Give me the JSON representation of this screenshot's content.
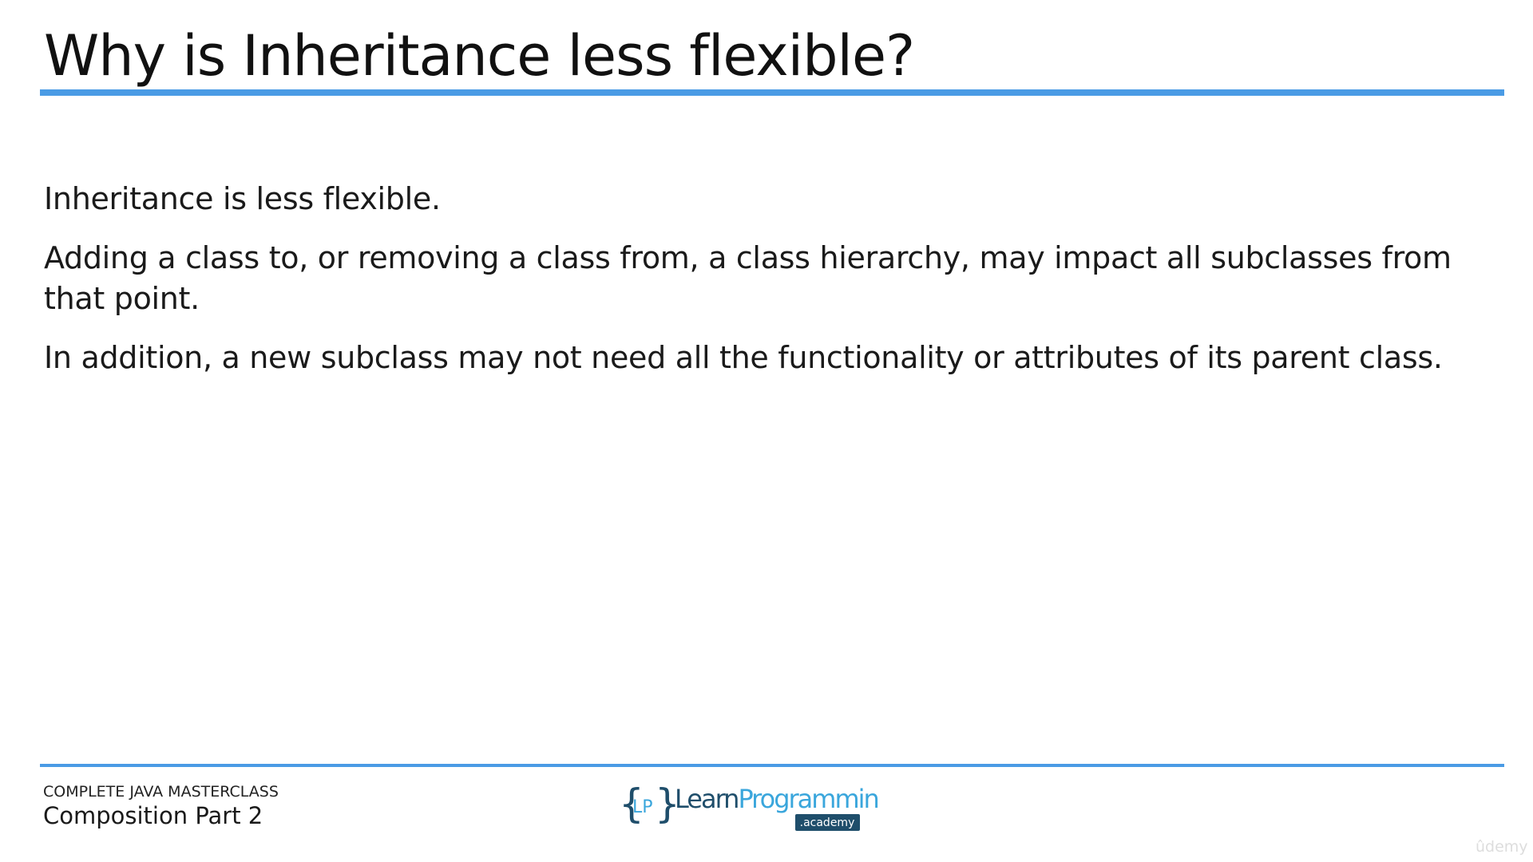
{
  "slide": {
    "title": "Why is Inheritance less flexible?",
    "paragraphs": [
      "Inheritance is less flexible.",
      "Adding a class to, or removing a class from, a class hierarchy, may impact all subclasses from that point.",
      "In addition, a new subclass may not need all the functionality or attributes of its parent class."
    ]
  },
  "footer": {
    "course": "COMPLETE JAVA MASTERCLASS",
    "lecture": "Composition Part 2"
  },
  "logo": {
    "initials": "LP",
    "name_part1": "Learn",
    "name_part2": "Programming",
    "tag": ".academy"
  },
  "watermark": {
    "text": "ûdemy"
  },
  "colors": {
    "accent": "#4a9be5",
    "logo_dark": "#1f4e6b",
    "logo_light": "#3aa6dc",
    "text": "#111111"
  }
}
